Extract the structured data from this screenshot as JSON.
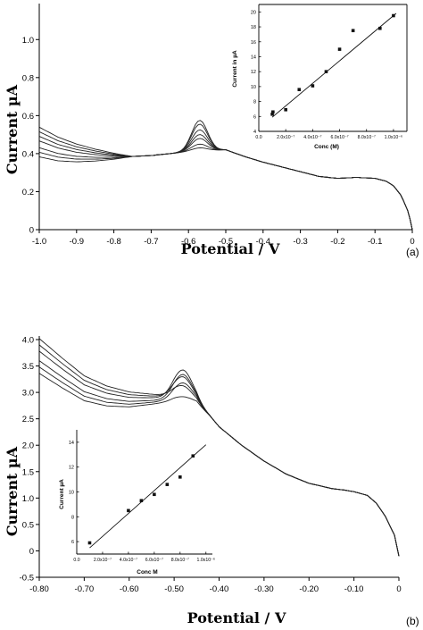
{
  "chart_data": [
    {
      "panel_label": "(a)",
      "type": "line",
      "xlabel": "Potential / V",
      "ylabel": "Current  µA",
      "xlim": [
        -1.0,
        0
      ],
      "ylim": [
        0,
        1.1
      ],
      "x_ticks": [
        "-1.0",
        "-0.9",
        "-0.8",
        "-0.7",
        "-0.6",
        "-0.5",
        "-0.4",
        "-0.3",
        "-0.2",
        "-0.1",
        "0"
      ],
      "y_ticks": [
        "0",
        "0.2",
        "0.4",
        "0.6",
        "0.8",
        "1.0"
      ],
      "curve_shape": {
        "peak_potential": -0.57,
        "peak_heights": [
          0.575,
          0.555,
          0.525,
          0.5,
          0.48,
          0.45,
          0.43
        ],
        "base_x": [
          -1.0,
          -0.95,
          -0.9,
          -0.85,
          -0.8,
          -0.75,
          -0.7,
          -0.65,
          -0.6,
          -0.5,
          -0.45,
          -0.4,
          -0.35,
          -0.3,
          -0.25,
          -0.2,
          -0.15,
          -0.1,
          -0.07,
          -0.05,
          -0.03,
          -0.01,
          0.0
        ],
        "base_y": [
          0.455,
          0.42,
          0.4,
          0.39,
          0.385,
          0.385,
          0.39,
          0.4,
          0.41,
          0.42,
          0.385,
          0.355,
          0.33,
          0.305,
          0.28,
          0.27,
          0.275,
          0.27,
          0.255,
          0.23,
          0.18,
          0.09,
          0.0
        ]
      },
      "inset": {
        "type": "scatter",
        "xlabel": "Conc (M)",
        "ylabel": "Current in µA",
        "xlim": [
          0,
          1.1e-06
        ],
        "ylim": [
          4,
          21
        ],
        "x_tick_values": [
          0,
          2e-07,
          4e-07,
          6e-07,
          8e-07,
          1e-06
        ],
        "x_ticks": [
          "0.0",
          "2.0x10⁻⁷",
          "4.0x10⁻⁷",
          "6.0x10⁻⁷",
          "8.0x10⁻⁷",
          "1.0x10⁻⁶"
        ],
        "y_tick_values": [
          4,
          6,
          8,
          10,
          12,
          14,
          16,
          18,
          20
        ],
        "y_ticks": [
          "4",
          "6",
          "8",
          "10",
          "12",
          "14",
          "16",
          "18",
          "20"
        ],
        "x": [
          1e-07,
          1.05e-07,
          2e-07,
          3e-07,
          4e-07,
          5e-07,
          6e-07,
          7e-07,
          9e-07,
          1e-06
        ],
        "y": [
          6.3,
          6.6,
          6.9,
          9.6,
          10.1,
          12.0,
          15.0,
          17.5,
          17.8,
          19.5
        ],
        "fit_x": [
          1e-07,
          1.02e-06
        ],
        "fit_y": [
          5.9,
          19.8
        ]
      }
    },
    {
      "panel_label": "(b)",
      "type": "line",
      "xlabel": "Potential / V",
      "ylabel": "Current  µA",
      "xlim": [
        -0.8,
        0
      ],
      "ylim": [
        -0.5,
        4.0
      ],
      "x_ticks": [
        "-0.80",
        "-0.70",
        "-0.60",
        "-0.50",
        "-0.40",
        "-0.30",
        "-0.20",
        "-0.10",
        "0"
      ],
      "y_ticks": [
        "-0.5",
        "0",
        "0.5",
        "1.0",
        "1.5",
        "2.0",
        "2.5",
        "3.0",
        "3.5",
        "4.0"
      ],
      "curve_shape": {
        "peak_potential": -0.48,
        "peak_heights": [
          3.42,
          3.35,
          3.28,
          3.2,
          3.1,
          2.95
        ],
        "base_x": [
          -0.8,
          -0.75,
          -0.7,
          -0.65,
          -0.6,
          -0.55,
          -0.5,
          -0.45,
          -0.42,
          -0.4,
          -0.35,
          -0.3,
          -0.25,
          -0.2,
          -0.15,
          -0.12,
          -0.1,
          -0.07,
          -0.05,
          -0.03,
          -0.01,
          0.0
        ],
        "base_y": [
          3.72,
          3.4,
          3.1,
          2.95,
          2.88,
          2.88,
          2.88,
          2.8,
          2.55,
          2.35,
          2.0,
          1.7,
          1.45,
          1.28,
          1.18,
          1.15,
          1.12,
          1.05,
          0.9,
          0.65,
          0.3,
          -0.1
        ]
      },
      "inset": {
        "type": "scatter",
        "xlabel": "Conc M",
        "ylabel": "Current µA",
        "xlim": [
          0,
          1.05e-06
        ],
        "ylim": [
          5,
          15
        ],
        "x_tick_values": [
          0,
          2e-07,
          4e-07,
          6e-07,
          8e-07,
          1e-06
        ],
        "x_ticks": [
          "0.0",
          "2.0x10⁻⁷",
          "4.0x10⁻⁷",
          "6.0x10⁻⁷",
          "8.0x10⁻⁷",
          "1.0x10⁻⁶"
        ],
        "y_tick_values": [
          6,
          8,
          10,
          12,
          14
        ],
        "y_ticks": [
          "6",
          "8",
          "10",
          "12",
          "14"
        ],
        "x": [
          1e-07,
          4e-07,
          5e-07,
          6e-07,
          7e-07,
          8e-07,
          9e-07
        ],
        "y": [
          5.9,
          8.5,
          9.3,
          9.8,
          10.6,
          11.2,
          12.9
        ],
        "fit_x": [
          1e-07,
          1e-06
        ],
        "fit_y": [
          5.5,
          13.8
        ]
      }
    }
  ]
}
